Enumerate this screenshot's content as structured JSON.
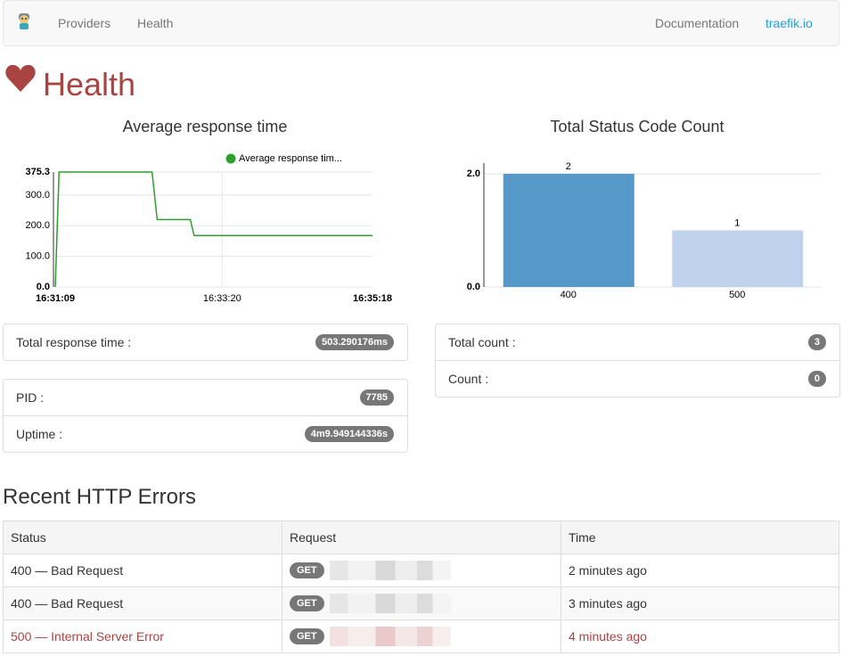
{
  "nav": {
    "links": [
      "Providers",
      "Health"
    ],
    "right": [
      "Documentation",
      "traefik.io"
    ]
  },
  "page_title": "Health",
  "chart_data": [
    {
      "type": "line",
      "title": "Average response time",
      "x": [
        "16:31:09",
        "16:31:12",
        "16:32:25",
        "16:32:29",
        "16:32:55",
        "16:32:58",
        "16:35:18"
      ],
      "series": [
        {
          "name": "Average response tim...",
          "color": "#2ca02c",
          "values": [
            0,
            375.3,
            375.3,
            220,
            220,
            168,
            168
          ]
        }
      ],
      "xlim": [
        "16:31:09",
        "16:35:18"
      ],
      "xticks": [
        "16:31:09",
        "16:33:20",
        "16:35:18"
      ],
      "ylim": [
        0,
        375.3
      ],
      "yticks": [
        {
          "value": 0,
          "label": "0.0"
        },
        {
          "value": 100,
          "label": "100.0"
        },
        {
          "value": 200,
          "label": "200.0"
        },
        {
          "value": 300,
          "label": "300.0"
        },
        375.3
      ],
      "grid": true
    },
    {
      "type": "bar",
      "title": "Total Status Code Count",
      "categories": [
        "400",
        "500"
      ],
      "values": [
        2,
        1
      ],
      "colors": [
        "#5499c7",
        "#bfd3ed"
      ],
      "ylim": [
        0,
        2
      ],
      "yticks": [
        {
          "value": 0,
          "label": "0.0"
        },
        {
          "value": 2,
          "label": "2.0"
        }
      ],
      "grid": true
    }
  ],
  "response_panel": {
    "rows": [
      {
        "label": "Total response time :",
        "badge": "503.290176ms"
      }
    ]
  },
  "process_panel": {
    "rows": [
      {
        "label": "PID :",
        "badge": "7785"
      },
      {
        "label": "Uptime :",
        "badge": "4m9.949144336s"
      }
    ]
  },
  "count_panel": {
    "rows": [
      {
        "label": "Total count :",
        "badge": "3"
      },
      {
        "label": "Count :",
        "badge": "0"
      }
    ]
  },
  "errors": {
    "title": "Recent HTTP Errors",
    "header": [
      "Status",
      "Request",
      "Time"
    ],
    "rows": [
      [
        "400 — Bad Request",
        "GET",
        "2 minutes ago"
      ],
      [
        "400 — Bad Request",
        "GET",
        "3 minutes ago"
      ],
      [
        "500 — Internal Server Error",
        "GET",
        "4 minutes ago"
      ]
    ]
  }
}
